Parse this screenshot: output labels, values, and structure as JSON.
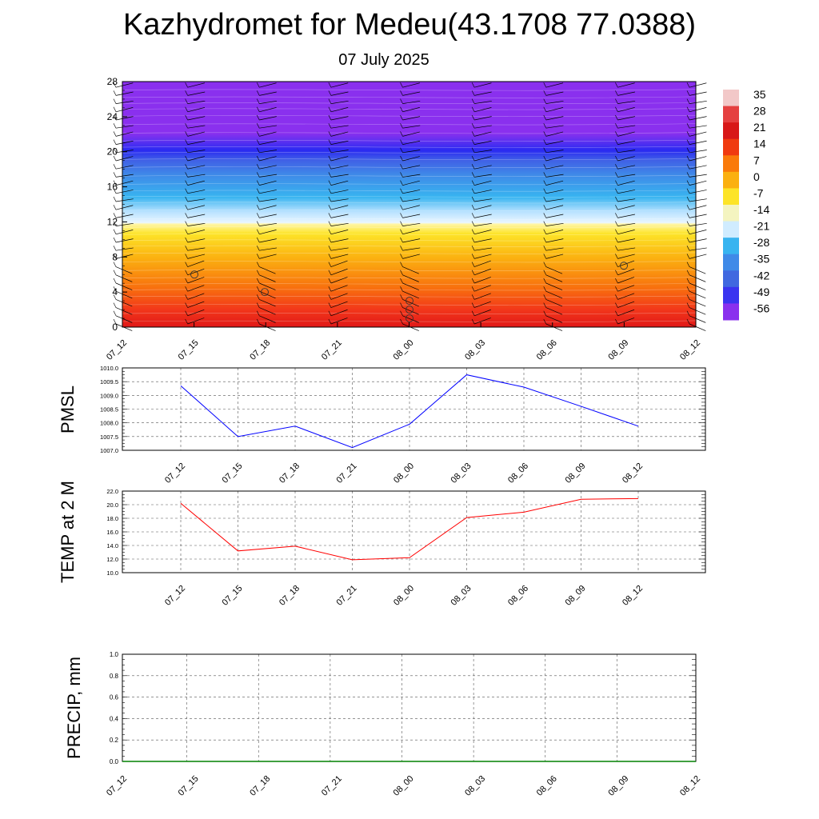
{
  "title": "Kazhydromet for Medeu(43.1708 77.0388)",
  "subtitle": "07 July 2025",
  "chart_data": [
    {
      "type": "heatmap",
      "name": "temperature-cross-section",
      "x_ticks": [
        "07_12",
        "07_15",
        "07_18",
        "07_21",
        "08_00",
        "08_03",
        "08_06",
        "08_09",
        "08_12"
      ],
      "y_ticks": [
        "0",
        "4",
        "8",
        "12",
        "16",
        "20",
        "24",
        "28"
      ],
      "ylim": [
        0,
        28
      ],
      "colorbar": {
        "labels": [
          "35",
          "28",
          "21",
          "14",
          "7",
          "0",
          "-7",
          "-14",
          "-21",
          "-28",
          "-35",
          "-42",
          "-49",
          "-56"
        ],
        "colors": [
          "#f2c8c8",
          "#e54040",
          "#d81818",
          "#f03a10",
          "#fa7a0a",
          "#fbb010",
          "#fde428",
          "#f4f4c0",
          "#d0ecff",
          "#38b4f0",
          "#3f8ae8",
          "#4068e0",
          "#3a34f0",
          "#8a30ee"
        ]
      },
      "wind_barbs": true,
      "circle_marks_y": [
        6,
        4,
        1,
        2,
        3,
        7
      ]
    },
    {
      "type": "line",
      "name": "PMSL",
      "ylabel": "PMSL",
      "categories": [
        "07_12",
        "07_15",
        "07_18",
        "07_21",
        "08_00",
        "08_03",
        "08_06",
        "08_09",
        "08_12"
      ],
      "y_ticks": [
        "1007.0",
        "1007.5",
        "1008.0",
        "1008.5",
        "1009.0",
        "1009.5",
        "1010.0"
      ],
      "ylim": [
        1007.0,
        1010.0
      ],
      "values": [
        1009.35,
        1007.5,
        1007.88,
        1007.1,
        1007.95,
        1009.75,
        1009.3,
        1008.6,
        1007.88
      ],
      "color": "#0000ff",
      "grid": true
    },
    {
      "type": "line",
      "name": "TEMP at 2 M",
      "ylabel": "TEMP at 2 M",
      "categories": [
        "07_12",
        "07_15",
        "07_18",
        "07_21",
        "08_00",
        "08_03",
        "08_06",
        "08_09",
        "08_12"
      ],
      "y_ticks": [
        "10.0",
        "12.0",
        "14.0",
        "16.0",
        "18.0",
        "20.0",
        "22.0"
      ],
      "ylim": [
        10.0,
        22.0
      ],
      "values": [
        20.2,
        13.2,
        13.9,
        11.9,
        12.2,
        18.1,
        18.9,
        20.8,
        20.9
      ],
      "color": "#ff0000",
      "grid": true
    },
    {
      "type": "bar",
      "name": "PRECIP",
      "ylabel": "PRECIP, mm",
      "x_ticks": [
        "07_12",
        "07_15",
        "07_18",
        "07_21",
        "08_00",
        "08_03",
        "08_06",
        "08_09",
        "08_12"
      ],
      "y_ticks": [
        "0.0",
        "0.2",
        "0.4",
        "0.6",
        "0.8",
        "1.0"
      ],
      "ylim": [
        0,
        1.0
      ],
      "values": [
        0,
        0,
        0,
        0,
        0,
        0,
        0,
        0,
        0
      ],
      "color": "#008000",
      "grid": true
    }
  ]
}
